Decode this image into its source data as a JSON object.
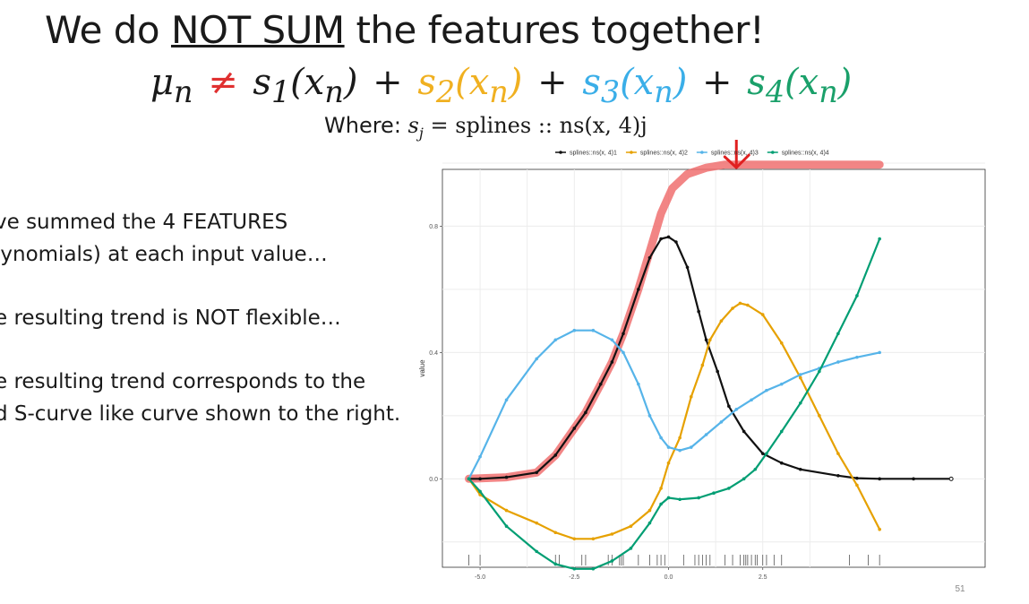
{
  "slide": {
    "title_pre": "We do ",
    "title_emph": "NOT SUM",
    "title_post": " the features together!",
    "equation": {
      "lhs": "μ",
      "lhs_sub": "n",
      "neq": "≠",
      "terms": [
        {
          "s": "s",
          "sub": "1",
          "arg": "(x",
          "argsub": "n",
          "close": ")",
          "color": "#1a1a1a"
        },
        {
          "s": "s",
          "sub": "2",
          "arg": "(x",
          "argsub": "n",
          "close": ")",
          "color": "#f0b020"
        },
        {
          "s": "s",
          "sub": "3",
          "arg": "(x",
          "argsub": "n",
          "close": ")",
          "color": "#3aaee8"
        },
        {
          "s": "s",
          "sub": "4",
          "arg": "(x",
          "argsub": "n",
          "close": ")",
          "color": "#1aa06a"
        }
      ],
      "plus": "+"
    },
    "where_label": "Where: ",
    "where_s": "s",
    "where_sub": "j",
    "where_eq": " = splines :: ns(x, 4)j",
    "bullets": [
      [
        "ve summed the 4 FEATURES",
        "lynomials) at each input value…"
      ],
      [
        "e resulting trend is NOT flexible…"
      ],
      [
        "e resulting trend corresponds to the",
        "d S-curve like curve shown to the right."
      ]
    ],
    "page_number": "51"
  },
  "chart_data": {
    "type": "line",
    "xlabel": "",
    "ylabel": "value",
    "xlim": [
      -6.0,
      8.4
    ],
    "ylim": [
      -0.28,
      0.98
    ],
    "x_ticks": [
      -5.0,
      -2.5,
      0.0,
      2.5
    ],
    "x_tick_labels": [
      "-5.0",
      "-2.5",
      "0.0",
      "2.5"
    ],
    "y_ticks": [
      0.0,
      0.4,
      0.8
    ],
    "y_tick_labels": [
      "0.0",
      "0.4",
      "0.8"
    ],
    "grid": true,
    "legend_position": "top",
    "rug": [
      -5.3,
      -5.0,
      -3.0,
      -2.9,
      -2.3,
      -2.2,
      -1.6,
      -1.5,
      -1.3,
      -1.25,
      -1.2,
      -0.8,
      -0.5,
      -0.3,
      -0.2,
      -0.1,
      0.4,
      0.7,
      0.8,
      0.9,
      1.0,
      1.1,
      1.5,
      1.7,
      1.9,
      2.0,
      2.05,
      2.1,
      2.2,
      2.3,
      2.35,
      2.5,
      2.6,
      2.8,
      3.0,
      4.8,
      5.3,
      5.6
    ],
    "series": [
      {
        "name": "splines::ns(x, 4)1",
        "color": "#111111",
        "points": [
          [
            -5.3,
            0.0
          ],
          [
            -5.0,
            0.0
          ],
          [
            -4.3,
            0.005
          ],
          [
            -3.5,
            0.02
          ],
          [
            -3.0,
            0.075
          ],
          [
            -2.5,
            0.16
          ],
          [
            -2.2,
            0.21
          ],
          [
            -1.8,
            0.3
          ],
          [
            -1.5,
            0.37
          ],
          [
            -1.2,
            0.46
          ],
          [
            -0.8,
            0.6
          ],
          [
            -0.5,
            0.7
          ],
          [
            -0.2,
            0.76
          ],
          [
            0.0,
            0.766
          ],
          [
            0.2,
            0.75
          ],
          [
            0.5,
            0.67
          ],
          [
            0.8,
            0.53
          ],
          [
            1.0,
            0.44
          ],
          [
            1.3,
            0.34
          ],
          [
            1.6,
            0.23
          ],
          [
            2.0,
            0.15
          ],
          [
            2.5,
            0.08
          ],
          [
            3.0,
            0.05
          ],
          [
            3.5,
            0.03
          ],
          [
            4.5,
            0.01
          ],
          [
            5.0,
            0.002
          ],
          [
            5.6,
            0.0
          ],
          [
            6.5,
            0.0
          ],
          [
            7.5,
            0.0
          ]
        ]
      },
      {
        "name": "splines::ns(x, 4)2",
        "color": "#e6a100",
        "points": [
          [
            -5.3,
            0.0
          ],
          [
            -5.0,
            -0.05
          ],
          [
            -4.3,
            -0.1
          ],
          [
            -3.5,
            -0.14
          ],
          [
            -3.0,
            -0.17
          ],
          [
            -2.5,
            -0.19
          ],
          [
            -2.0,
            -0.19
          ],
          [
            -1.5,
            -0.175
          ],
          [
            -1.0,
            -0.15
          ],
          [
            -0.5,
            -0.1
          ],
          [
            -0.2,
            -0.03
          ],
          [
            0.0,
            0.05
          ],
          [
            0.3,
            0.13
          ],
          [
            0.6,
            0.26
          ],
          [
            0.9,
            0.36
          ],
          [
            1.1,
            0.44
          ],
          [
            1.4,
            0.5
          ],
          [
            1.7,
            0.54
          ],
          [
            1.9,
            0.556
          ],
          [
            2.1,
            0.55
          ],
          [
            2.5,
            0.52
          ],
          [
            3.0,
            0.43
          ],
          [
            3.5,
            0.32
          ],
          [
            4.0,
            0.2
          ],
          [
            4.5,
            0.08
          ],
          [
            5.0,
            -0.02
          ],
          [
            5.6,
            -0.16
          ]
        ]
      },
      {
        "name": "splines::ns(x, 4)3",
        "color": "#56b4e9",
        "points": [
          [
            -5.3,
            0.0
          ],
          [
            -5.0,
            0.07
          ],
          [
            -4.3,
            0.25
          ],
          [
            -3.5,
            0.38
          ],
          [
            -3.0,
            0.44
          ],
          [
            -2.5,
            0.47
          ],
          [
            -2.0,
            0.47
          ],
          [
            -1.5,
            0.44
          ],
          [
            -1.2,
            0.4
          ],
          [
            -0.8,
            0.3
          ],
          [
            -0.5,
            0.2
          ],
          [
            -0.2,
            0.13
          ],
          [
            0.0,
            0.1
          ],
          [
            0.3,
            0.09
          ],
          [
            0.6,
            0.1
          ],
          [
            1.0,
            0.14
          ],
          [
            1.4,
            0.18
          ],
          [
            1.8,
            0.22
          ],
          [
            2.2,
            0.25
          ],
          [
            2.6,
            0.28
          ],
          [
            3.0,
            0.3
          ],
          [
            3.5,
            0.33
          ],
          [
            4.0,
            0.35
          ],
          [
            4.5,
            0.37
          ],
          [
            5.0,
            0.385
          ],
          [
            5.6,
            0.4
          ]
        ]
      },
      {
        "name": "splines::ns(x, 4)4",
        "color": "#009e73",
        "points": [
          [
            -5.3,
            0.0
          ],
          [
            -5.0,
            -0.04
          ],
          [
            -4.3,
            -0.15
          ],
          [
            -3.5,
            -0.23
          ],
          [
            -3.0,
            -0.27
          ],
          [
            -2.5,
            -0.285
          ],
          [
            -2.0,
            -0.285
          ],
          [
            -1.5,
            -0.26
          ],
          [
            -1.0,
            -0.22
          ],
          [
            -0.5,
            -0.14
          ],
          [
            -0.2,
            -0.08
          ],
          [
            0.0,
            -0.06
          ],
          [
            0.3,
            -0.065
          ],
          [
            0.8,
            -0.06
          ],
          [
            1.2,
            -0.045
          ],
          [
            1.6,
            -0.03
          ],
          [
            2.0,
            0.0
          ],
          [
            2.3,
            0.03
          ],
          [
            2.6,
            0.08
          ],
          [
            3.0,
            0.15
          ],
          [
            3.5,
            0.24
          ],
          [
            4.0,
            0.34
          ],
          [
            4.5,
            0.46
          ],
          [
            5.0,
            0.58
          ],
          [
            5.6,
            0.76
          ]
        ]
      }
    ],
    "annotations": [
      {
        "type": "highlight",
        "color": "#f07070",
        "points": [
          [
            -5.3,
            0.0
          ],
          [
            -4.3,
            0.005
          ],
          [
            -3.5,
            0.02
          ],
          [
            -3.0,
            0.075
          ],
          [
            -2.5,
            0.16
          ],
          [
            -2.2,
            0.21
          ],
          [
            -1.8,
            0.3
          ],
          [
            -1.5,
            0.37
          ],
          [
            -1.2,
            0.46
          ],
          [
            -0.8,
            0.6
          ],
          [
            -0.5,
            0.72
          ],
          [
            -0.2,
            0.84
          ],
          [
            0.1,
            0.92
          ],
          [
            0.5,
            0.965
          ],
          [
            1.0,
            0.985
          ],
          [
            1.5,
            0.995
          ],
          [
            2.5,
            0.995
          ],
          [
            4.0,
            0.995
          ],
          [
            5.6,
            0.995
          ]
        ]
      },
      {
        "type": "arrow",
        "color": "#e02020",
        "from": [
          1.8,
          1.15
        ],
        "to": [
          1.8,
          0.98
        ]
      }
    ]
  }
}
